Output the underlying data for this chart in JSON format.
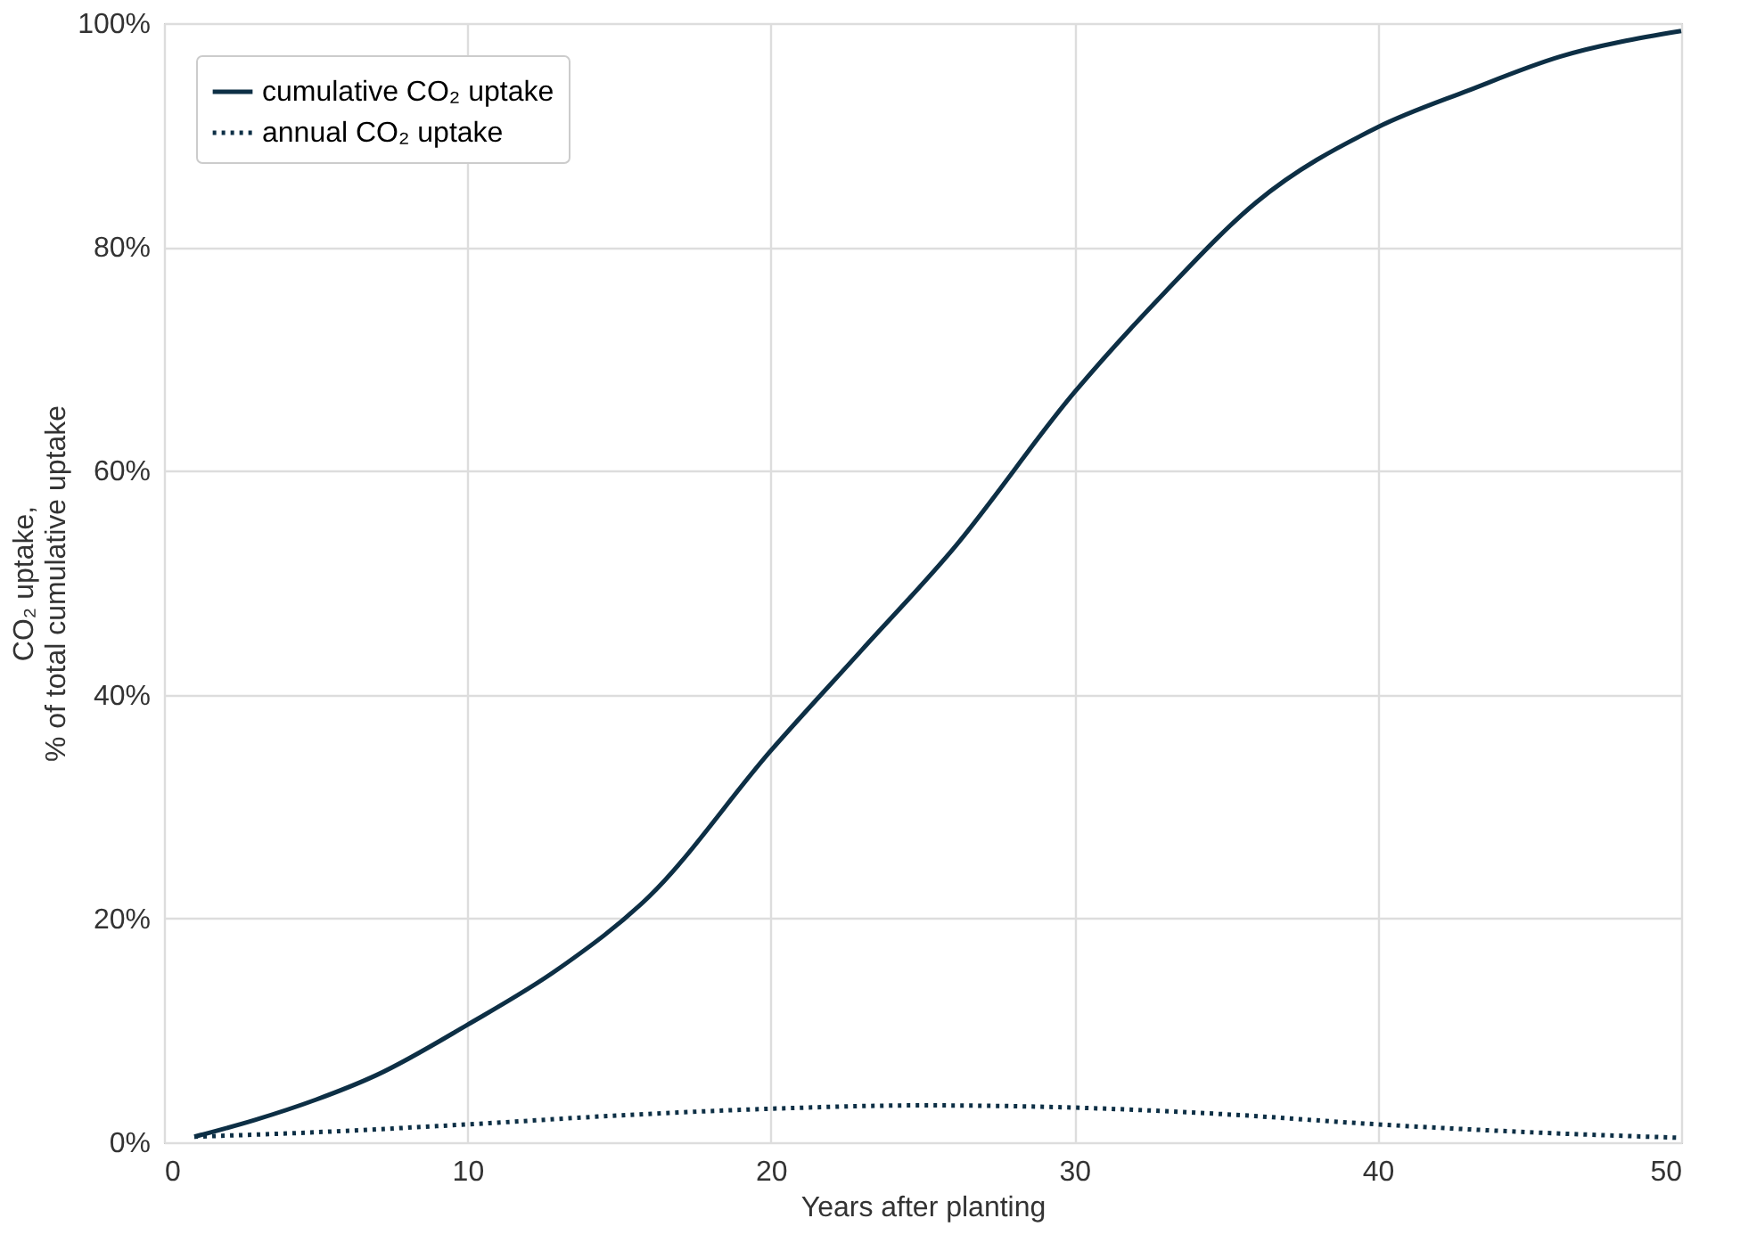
{
  "chart_data": {
    "type": "line",
    "xlabel": "Years after planting",
    "ylabel": "CO₂ uptake,\n% of total cumulative uptake",
    "series": [
      {
        "name": "cumulative CO₂ uptake",
        "color": "#0d2f45",
        "line_style": "solid",
        "x": [
          1,
          3,
          5,
          7,
          10,
          13,
          16,
          20,
          23,
          26,
          30,
          33,
          36,
          40,
          43,
          46,
          50
        ],
        "values": [
          0.5,
          2,
          3.8,
          6,
          10.5,
          15.5,
          22,
          35,
          44,
          53,
          67,
          76,
          84,
          90.7,
          94,
          97,
          99.3
        ]
      },
      {
        "name": "annual CO₂ uptake",
        "color": "#0d2f45",
        "line_style": "dotted",
        "x": [
          1,
          5,
          10,
          15,
          20,
          25,
          30,
          35,
          40,
          45,
          50
        ],
        "values": [
          0.5,
          0.9,
          1.6,
          2.4,
          3.0,
          3.3,
          3.1,
          2.5,
          1.6,
          0.9,
          0.4
        ]
      }
    ],
    "xlim": [
      0,
      50
    ],
    "xticks": [
      0,
      10,
      20,
      30,
      40,
      50
    ],
    "ylim": [
      0,
      100
    ],
    "yticks": [
      {
        "value": 0,
        "label": "0%"
      },
      {
        "value": 20,
        "label": "20%"
      },
      {
        "value": 40,
        "label": "40%"
      },
      {
        "value": 60,
        "label": "60%"
      },
      {
        "value": 80,
        "label": "80%"
      },
      {
        "value": 100,
        "label": "100%"
      }
    ],
    "grid": true,
    "legend": "top left",
    "marker": "none"
  }
}
